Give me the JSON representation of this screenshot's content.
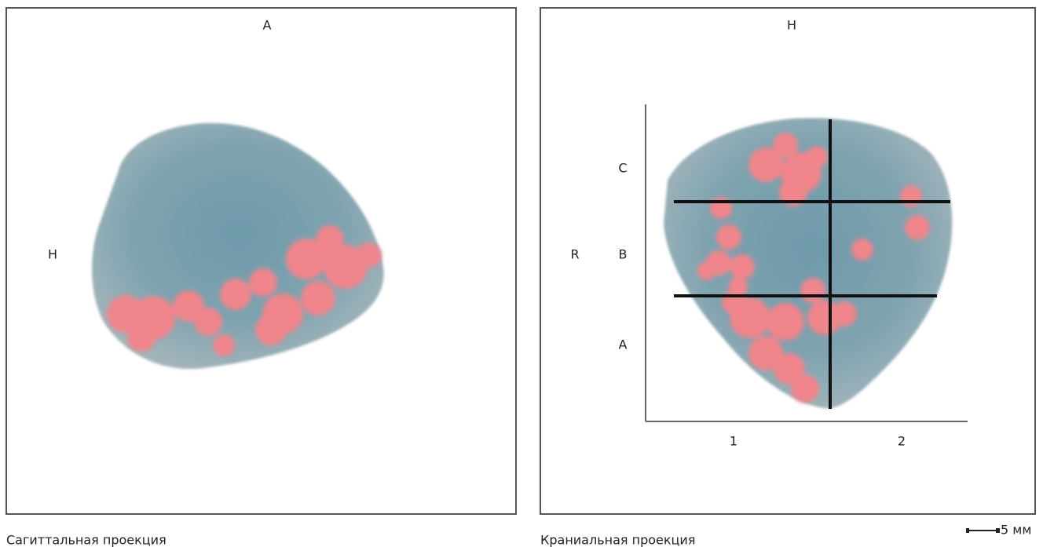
{
  "left_panel": {
    "top_label": "A",
    "side_label": "H",
    "caption": "Сагиттальная проекция"
  },
  "right_panel": {
    "top_label": "H",
    "side_label": "R",
    "row_labels": [
      "C",
      "B",
      "A"
    ],
    "column_labels": [
      "1",
      "2"
    ],
    "caption": "Краниальная проекция"
  },
  "scale_bar": {
    "label": "5 мм"
  }
}
